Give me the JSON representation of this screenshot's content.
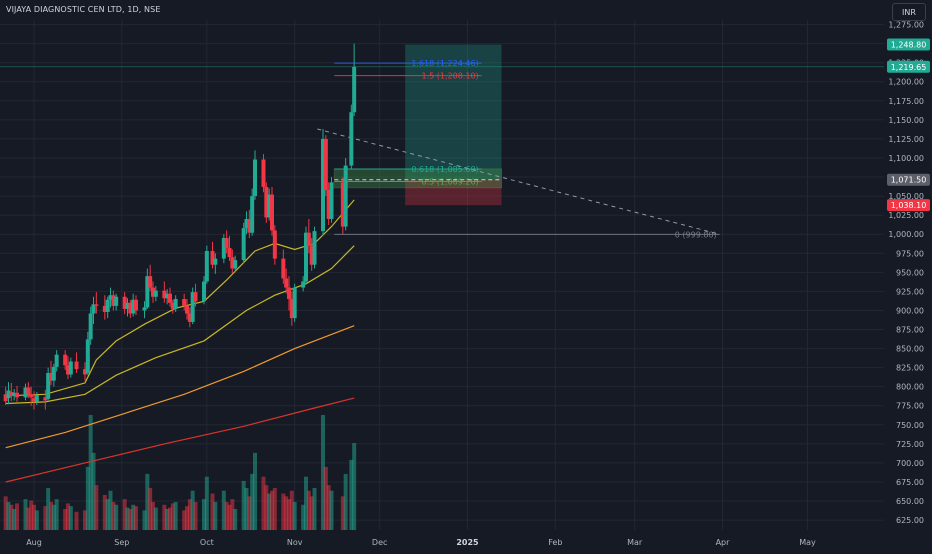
{
  "header": {
    "symbol_title": "VIJAYA DIAGNOSTIC CEN LTD, 1D, NSE",
    "currency": "INR"
  },
  "colors": {
    "background": "#161a25",
    "grid": "#232733",
    "up": "#22ab94",
    "down": "#f23645",
    "ema_fast": "#c9b823",
    "ema_mid": "#f09a2c",
    "ema_slow": "#d9352c",
    "fib_1618": "#2962ff",
    "fib_15": "#f23645",
    "fib_0618": "#22ab94",
    "fib_05": "#4caf50",
    "fib_0": "#787b86"
  },
  "chart_data": {
    "type": "candlestick",
    "y_range": [
      612,
      1281
    ],
    "y_ticks": [
      625,
      650,
      675,
      700,
      725,
      750,
      775,
      800,
      825,
      850,
      875,
      900,
      925,
      950,
      975,
      1000,
      1025,
      1050,
      1075,
      1100,
      1125,
      1150,
      1175,
      1200,
      1225,
      1250,
      1275
    ],
    "x_labels": [
      {
        "label": "Aug",
        "date": "2024-08-01"
      },
      {
        "label": "Sep",
        "date": "2024-09-01"
      },
      {
        "label": "Oct",
        "date": "2024-10-01"
      },
      {
        "label": "Nov",
        "date": "2024-11-01"
      },
      {
        "label": "Dec",
        "date": "2024-12-01"
      },
      {
        "label": "2025",
        "date": "2025-01-01",
        "bold": true
      },
      {
        "label": "Feb",
        "date": "2025-02-01"
      },
      {
        "label": "Mar",
        "date": "2025-03-01"
      },
      {
        "label": "Apr",
        "date": "2025-04-01"
      },
      {
        "label": "May",
        "date": "2025-05-01"
      }
    ],
    "x_range": [
      "2024-07-20",
      "2025-05-28"
    ],
    "price_tags": [
      {
        "value": 1248.8,
        "label": "1,248.80",
        "color": "#22ab94"
      },
      {
        "value": 1219.65,
        "label": "1,219.65",
        "color": "#22ab94"
      },
      {
        "value": 1071.5,
        "label": "1,071.50",
        "color": "#5d606b"
      },
      {
        "value": 1038.1,
        "label": "1,038.10",
        "color": "#f23645"
      }
    ],
    "fib_levels": [
      {
        "ratio": "1.618",
        "value": 1224.46,
        "label": "1.618 (1,224.46)",
        "start": "2024-11-15",
        "end": "2025-01-06",
        "color": "#2962ff"
      },
      {
        "ratio": "1.5",
        "value": 1208.1,
        "label": "1.5 (1,208.10)",
        "start": "2024-11-15",
        "end": "2025-01-06",
        "color": "#f23645"
      },
      {
        "ratio": "0.618",
        "value": 1085.6,
        "label": "0.618 (1,085.60)",
        "start": "2024-11-15",
        "end": "2025-01-06",
        "color": "#22ab94"
      },
      {
        "ratio": "0.5",
        "value": 1069.2,
        "label": "0.5 (1,069.20)",
        "start": "2024-11-15",
        "end": "2025-01-06",
        "color": "#4caf50"
      },
      {
        "ratio": "0",
        "value": 999.8,
        "label": "0 (999.80)",
        "start": "2024-11-15",
        "end": "2025-03-31",
        "color": "#787b86"
      }
    ],
    "position_box": {
      "start": "2024-12-10",
      "end": "2025-01-13",
      "entry": 1071.5,
      "target": 1248.8,
      "stop": 1038.1
    },
    "zone_box": {
      "start": "2024-11-15",
      "end": "2025-01-13",
      "top": 1085.6,
      "bottom": 1061.0
    },
    "trend_line": {
      "from": {
        "date": "2024-11-09",
        "value": 1138
      },
      "to": {
        "date": "2025-03-31",
        "value": 999.8
      }
    },
    "candles": [
      {
        "t": "2024-07-22",
        "o": 790,
        "h": 800,
        "c": 781,
        "l": 776,
        "v": 24
      },
      {
        "t": "2024-07-23",
        "o": 785,
        "h": 806,
        "c": 795,
        "l": 777,
        "v": 20
      },
      {
        "t": "2024-07-24",
        "o": 793,
        "h": 805,
        "c": 788,
        "l": 781,
        "v": 18
      },
      {
        "t": "2024-07-25",
        "o": 788,
        "h": 797,
        "c": 792,
        "l": 782,
        "v": 15
      },
      {
        "t": "2024-07-26",
        "o": 792,
        "h": 801,
        "c": 786,
        "l": 780,
        "v": 19
      },
      {
        "t": "2024-07-29",
        "o": 786,
        "h": 804,
        "c": 799,
        "l": 782,
        "v": 22
      },
      {
        "t": "2024-07-30",
        "o": 799,
        "h": 806,
        "c": 790,
        "l": 785,
        "v": 16
      },
      {
        "t": "2024-07-31",
        "o": 790,
        "h": 800,
        "c": 786,
        "l": 775,
        "v": 21
      },
      {
        "t": "2024-08-01",
        "o": 785,
        "h": 794,
        "c": 780,
        "l": 770,
        "v": 18
      },
      {
        "t": "2024-08-02",
        "o": 780,
        "h": 793,
        "c": 789,
        "l": 776,
        "v": 14
      },
      {
        "t": "2024-08-05",
        "o": 786,
        "h": 796,
        "c": 782,
        "l": 770,
        "v": 17
      },
      {
        "t": "2024-08-06",
        "o": 784,
        "h": 825,
        "c": 818,
        "l": 782,
        "v": 30
      },
      {
        "t": "2024-08-07",
        "o": 818,
        "h": 834,
        "c": 808,
        "l": 802,
        "v": 20
      },
      {
        "t": "2024-08-08",
        "o": 808,
        "h": 830,
        "c": 826,
        "l": 800,
        "v": 18
      },
      {
        "t": "2024-08-09",
        "o": 826,
        "h": 848,
        "c": 842,
        "l": 820,
        "v": 22
      },
      {
        "t": "2024-08-12",
        "o": 842,
        "h": 848,
        "c": 828,
        "l": 822,
        "v": 15
      },
      {
        "t": "2024-08-13",
        "o": 828,
        "h": 840,
        "c": 816,
        "l": 810,
        "v": 19
      },
      {
        "t": "2024-08-14",
        "o": 816,
        "h": 838,
        "c": 833,
        "l": 812,
        "v": 17
      },
      {
        "t": "2024-08-16",
        "o": 833,
        "h": 845,
        "c": 823,
        "l": 818,
        "v": 13
      },
      {
        "t": "2024-08-19",
        "o": 823,
        "h": 832,
        "c": 816,
        "l": 808,
        "v": 14
      },
      {
        "t": "2024-08-20",
        "o": 818,
        "h": 872,
        "c": 862,
        "l": 815,
        "v": 45
      },
      {
        "t": "2024-08-21",
        "o": 862,
        "h": 905,
        "c": 896,
        "l": 855,
        "v": 82
      },
      {
        "t": "2024-08-22",
        "o": 896,
        "h": 918,
        "c": 908,
        "l": 882,
        "v": 55
      },
      {
        "t": "2024-08-23",
        "o": 908,
        "h": 924,
        "c": 906,
        "l": 896,
        "v": 32
      },
      {
        "t": "2024-08-26",
        "o": 906,
        "h": 920,
        "c": 898,
        "l": 888,
        "v": 25
      },
      {
        "t": "2024-08-27",
        "o": 898,
        "h": 918,
        "c": 914,
        "l": 890,
        "v": 22
      },
      {
        "t": "2024-08-28",
        "o": 914,
        "h": 930,
        "c": 920,
        "l": 904,
        "v": 28
      },
      {
        "t": "2024-08-29",
        "o": 920,
        "h": 926,
        "c": 906,
        "l": 900,
        "v": 20
      },
      {
        "t": "2024-08-30",
        "o": 906,
        "h": 922,
        "c": 918,
        "l": 900,
        "v": 18
      },
      {
        "t": "2024-09-02",
        "o": 918,
        "h": 924,
        "c": 902,
        "l": 895,
        "v": 22
      },
      {
        "t": "2024-09-03",
        "o": 902,
        "h": 916,
        "c": 910,
        "l": 892,
        "v": 16
      },
      {
        "t": "2024-09-04",
        "o": 910,
        "h": 914,
        "c": 896,
        "l": 890,
        "v": 15
      },
      {
        "t": "2024-09-05",
        "o": 896,
        "h": 922,
        "c": 914,
        "l": 892,
        "v": 18
      },
      {
        "t": "2024-09-06",
        "o": 914,
        "h": 920,
        "c": 900,
        "l": 894,
        "v": 17
      },
      {
        "t": "2024-09-09",
        "o": 900,
        "h": 912,
        "c": 904,
        "l": 890,
        "v": 14
      },
      {
        "t": "2024-09-10",
        "o": 904,
        "h": 955,
        "c": 945,
        "l": 902,
        "v": 40
      },
      {
        "t": "2024-09-11",
        "o": 945,
        "h": 960,
        "c": 930,
        "l": 925,
        "v": 30
      },
      {
        "t": "2024-09-12",
        "o": 930,
        "h": 938,
        "c": 918,
        "l": 910,
        "v": 20
      },
      {
        "t": "2024-09-13",
        "o": 918,
        "h": 932,
        "c": 926,
        "l": 912,
        "v": 16
      },
      {
        "t": "2024-09-16",
        "o": 926,
        "h": 938,
        "c": 916,
        "l": 910,
        "v": 18
      },
      {
        "t": "2024-09-17",
        "o": 916,
        "h": 928,
        "c": 922,
        "l": 908,
        "v": 15
      },
      {
        "t": "2024-09-18",
        "o": 922,
        "h": 930,
        "c": 910,
        "l": 905,
        "v": 16
      },
      {
        "t": "2024-09-19",
        "o": 910,
        "h": 914,
        "c": 902,
        "l": 896,
        "v": 19
      },
      {
        "t": "2024-09-20",
        "o": 902,
        "h": 920,
        "c": 915,
        "l": 898,
        "v": 20
      },
      {
        "t": "2024-09-23",
        "o": 915,
        "h": 922,
        "c": 906,
        "l": 900,
        "v": 14
      },
      {
        "t": "2024-09-24",
        "o": 906,
        "h": 915,
        "c": 896,
        "l": 888,
        "v": 17
      },
      {
        "t": "2024-09-25",
        "o": 896,
        "h": 904,
        "c": 885,
        "l": 878,
        "v": 22
      },
      {
        "t": "2024-09-26",
        "o": 885,
        "h": 930,
        "c": 924,
        "l": 882,
        "v": 28
      },
      {
        "t": "2024-09-27",
        "o": 924,
        "h": 935,
        "c": 912,
        "l": 905,
        "v": 20
      },
      {
        "t": "2024-09-30",
        "o": 912,
        "h": 945,
        "c": 938,
        "l": 908,
        "v": 22
      },
      {
        "t": "2024-10-01",
        "o": 938,
        "h": 985,
        "c": 978,
        "l": 935,
        "v": 38
      },
      {
        "t": "2024-10-03",
        "o": 978,
        "h": 990,
        "c": 960,
        "l": 955,
        "v": 26
      },
      {
        "t": "2024-10-04",
        "o": 960,
        "h": 975,
        "c": 968,
        "l": 948,
        "v": 20
      },
      {
        "t": "2024-10-07",
        "o": 968,
        "h": 1000,
        "c": 995,
        "l": 962,
        "v": 28
      },
      {
        "t": "2024-10-08",
        "o": 995,
        "h": 1005,
        "c": 982,
        "l": 975,
        "v": 20
      },
      {
        "t": "2024-10-09",
        "o": 982,
        "h": 998,
        "c": 970,
        "l": 965,
        "v": 18
      },
      {
        "t": "2024-10-10",
        "o": 970,
        "h": 980,
        "c": 955,
        "l": 948,
        "v": 22
      },
      {
        "t": "2024-10-11",
        "o": 955,
        "h": 972,
        "c": 966,
        "l": 950,
        "v": 15
      },
      {
        "t": "2024-10-14",
        "o": 966,
        "h": 1015,
        "c": 1008,
        "l": 962,
        "v": 35
      },
      {
        "t": "2024-10-15",
        "o": 1008,
        "h": 1030,
        "c": 1020,
        "l": 1000,
        "v": 30
      },
      {
        "t": "2024-10-16",
        "o": 1020,
        "h": 1032,
        "c": 1002,
        "l": 995,
        "v": 24
      },
      {
        "t": "2024-10-17",
        "o": 1002,
        "h": 1060,
        "c": 1050,
        "l": 998,
        "v": 40
      },
      {
        "t": "2024-10-18",
        "o": 1050,
        "h": 1110,
        "c": 1098,
        "l": 1045,
        "v": 55
      },
      {
        "t": "2024-10-21",
        "o": 1098,
        "h": 1105,
        "c": 1062,
        "l": 1055,
        "v": 38
      },
      {
        "t": "2024-10-22",
        "o": 1062,
        "h": 1068,
        "c": 1022,
        "l": 1015,
        "v": 32
      },
      {
        "t": "2024-10-23",
        "o": 1022,
        "h": 1060,
        "c": 1052,
        "l": 1018,
        "v": 26
      },
      {
        "t": "2024-10-24",
        "o": 1052,
        "h": 1062,
        "c": 1005,
        "l": 998,
        "v": 28
      },
      {
        "t": "2024-10-25",
        "o": 1005,
        "h": 1012,
        "c": 968,
        "l": 960,
        "v": 30
      },
      {
        "t": "2024-10-28",
        "o": 968,
        "h": 980,
        "c": 942,
        "l": 935,
        "v": 26
      },
      {
        "t": "2024-10-29",
        "o": 942,
        "h": 955,
        "c": 930,
        "l": 922,
        "v": 24
      },
      {
        "t": "2024-10-30",
        "o": 930,
        "h": 945,
        "c": 915,
        "l": 900,
        "v": 22
      },
      {
        "t": "2024-10-31",
        "o": 915,
        "h": 925,
        "c": 890,
        "l": 880,
        "v": 28
      },
      {
        "t": "2024-11-01",
        "o": 890,
        "h": 935,
        "c": 930,
        "l": 885,
        "v": 20
      },
      {
        "t": "2024-11-04",
        "o": 930,
        "h": 945,
        "c": 938,
        "l": 925,
        "v": 18
      },
      {
        "t": "2024-11-05",
        "o": 938,
        "h": 1010,
        "c": 1002,
        "l": 935,
        "v": 38
      },
      {
        "t": "2024-11-06",
        "o": 1002,
        "h": 1020,
        "c": 985,
        "l": 975,
        "v": 28
      },
      {
        "t": "2024-11-07",
        "o": 985,
        "h": 995,
        "c": 960,
        "l": 952,
        "v": 24
      },
      {
        "t": "2024-11-08",
        "o": 960,
        "h": 1010,
        "c": 1004,
        "l": 955,
        "v": 30
      },
      {
        "t": "2024-11-11",
        "o": 1004,
        "h": 1138,
        "c": 1125,
        "l": 998,
        "v": 82
      },
      {
        "t": "2024-11-12",
        "o": 1125,
        "h": 1130,
        "c": 1058,
        "l": 1050,
        "v": 45
      },
      {
        "t": "2024-11-13",
        "o": 1058,
        "h": 1068,
        "c": 1020,
        "l": 1012,
        "v": 32
      },
      {
        "t": "2024-11-14",
        "o": 1020,
        "h": 1075,
        "c": 1068,
        "l": 1015,
        "v": 28
      },
      {
        "t": "2024-11-18",
        "o": 1068,
        "h": 1075,
        "c": 1010,
        "l": 1000,
        "v": 24
      },
      {
        "t": "2024-11-19",
        "o": 1010,
        "h": 1100,
        "c": 1090,
        "l": 1005,
        "v": 40
      },
      {
        "t": "2024-11-21",
        "o": 1090,
        "h": 1170,
        "c": 1160,
        "l": 1085,
        "v": 50
      },
      {
        "t": "2024-11-22",
        "o": 1160,
        "h": 1250,
        "c": 1219.65,
        "l": 1155,
        "v": 62
      }
    ],
    "ema_fast": [
      [
        "2024-07-22",
        788
      ],
      [
        "2024-08-05",
        790
      ],
      [
        "2024-08-19",
        805
      ],
      [
        "2024-08-23",
        835
      ],
      [
        "2024-08-30",
        860
      ],
      [
        "2024-09-09",
        882
      ],
      [
        "2024-09-20",
        903
      ],
      [
        "2024-09-30",
        912
      ],
      [
        "2024-10-08",
        940
      ],
      [
        "2024-10-18",
        978
      ],
      [
        "2024-10-25",
        988
      ],
      [
        "2024-11-01",
        980
      ],
      [
        "2024-11-08",
        988
      ],
      [
        "2024-11-14",
        1010
      ],
      [
        "2024-11-22",
        1045
      ]
    ],
    "ema_mid": [
      [
        "2024-07-22",
        778
      ],
      [
        "2024-08-05",
        780
      ],
      [
        "2024-08-19",
        790
      ],
      [
        "2024-08-30",
        815
      ],
      [
        "2024-09-13",
        838
      ],
      [
        "2024-09-30",
        860
      ],
      [
        "2024-10-15",
        900
      ],
      [
        "2024-10-25",
        920
      ],
      [
        "2024-11-05",
        935
      ],
      [
        "2024-11-14",
        955
      ],
      [
        "2024-11-22",
        985
      ]
    ],
    "ema_slow": [
      [
        "2024-07-22",
        720
      ],
      [
        "2024-08-12",
        740
      ],
      [
        "2024-09-02",
        765
      ],
      [
        "2024-09-23",
        790
      ],
      [
        "2024-10-14",
        820
      ],
      [
        "2024-11-01",
        850
      ],
      [
        "2024-11-22",
        880
      ]
    ],
    "ema_long": [
      [
        "2024-07-22",
        675
      ],
      [
        "2024-08-19",
        700
      ],
      [
        "2024-09-16",
        725
      ],
      [
        "2024-10-14",
        748
      ],
      [
        "2024-11-08",
        772
      ],
      [
        "2024-11-22",
        785
      ]
    ]
  }
}
